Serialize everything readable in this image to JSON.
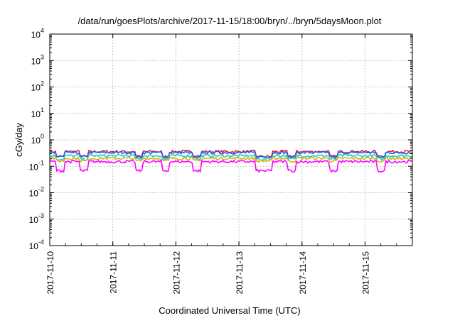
{
  "chart_data": {
    "type": "line",
    "title": "/data/run/goesPlots/archive/2017-11-15/18:00/bryn/../bryn/5daysMoon.plot",
    "xlabel": "Coordinated Universal Time (UTC)",
    "ylabel": "cGy/day",
    "yscale": "log",
    "ylim": [
      0.0001,
      10000
    ],
    "xlim": [
      "2017-11-10",
      "2017-11-15 18:00"
    ],
    "y_ticks": [
      {
        "base": "10",
        "exp": "4",
        "value": 10000
      },
      {
        "base": "10",
        "exp": "3",
        "value": 1000
      },
      {
        "base": "10",
        "exp": "2",
        "value": 100
      },
      {
        "base": "10",
        "exp": "1",
        "value": 10
      },
      {
        "base": "10",
        "exp": "0",
        "value": 1
      },
      {
        "base": "10",
        "exp": "-1",
        "value": 0.1
      },
      {
        "base": "10",
        "exp": "-2",
        "value": 0.01
      },
      {
        "base": "10",
        "exp": "-3",
        "value": 0.001
      },
      {
        "base": "10",
        "exp": "-4",
        "value": 0.0001
      }
    ],
    "x_ticks": [
      "2017-11-10",
      "2017-11-11",
      "2017-11-12",
      "2017-11-13",
      "2017-11-14",
      "2017-11-15"
    ],
    "grid": true,
    "series": [
      {
        "color": "#e8202a",
        "level": 0.36
      },
      {
        "color": "#1f5fff",
        "level": 0.33
      },
      {
        "color": "#20d0b0",
        "level": 0.25
      },
      {
        "color": "#d4b020",
        "level": 0.2
      },
      {
        "color": "#ff00ff",
        "level": 0.15
      }
    ],
    "dip_dates": [
      "2017-11-10 04:00",
      "2017-11-10 13:00",
      "2017-11-11 10:00",
      "2017-11-11 20:00",
      "2017-11-12 08:00",
      "2017-11-13 08:00",
      "2017-11-13 11:00",
      "2017-11-13 20:00",
      "2017-11-14 12:00",
      "2017-11-15 06:00"
    ]
  }
}
